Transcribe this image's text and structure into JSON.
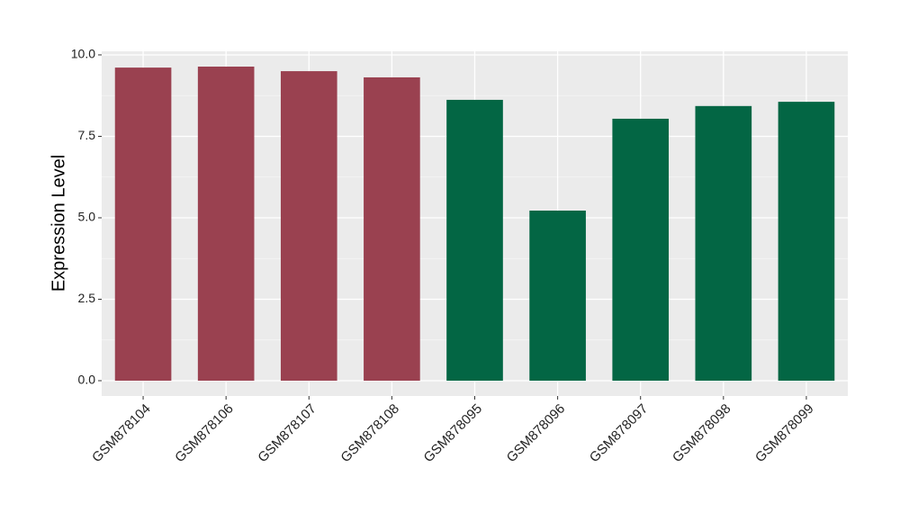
{
  "chart_data": {
    "type": "bar",
    "y_label": "Expression Level",
    "categories": [
      "GSM878104",
      "GSM878106",
      "GSM878107",
      "GSM878108",
      "GSM878095",
      "GSM878096",
      "GSM878097",
      "GSM878098",
      "GSM878099"
    ],
    "values": [
      9.61,
      9.64,
      9.5,
      9.31,
      8.62,
      5.22,
      8.04,
      8.43,
      8.56
    ],
    "colors": [
      "#9a4150",
      "#9a4150",
      "#9a4150",
      "#9a4150",
      "#036644",
      "#036644",
      "#036644",
      "#036644",
      "#036644"
    ],
    "ylim": [
      -0.47,
      10.11
    ],
    "yticks": [
      {
        "value": 0,
        "label": "0.0"
      },
      {
        "value": 2.5,
        "label": "2.5"
      },
      {
        "value": 5,
        "label": "5.0"
      },
      {
        "value": 7.5,
        "label": "7.5"
      },
      {
        "value": 10,
        "label": "10.0"
      }
    ],
    "grid": true
  }
}
